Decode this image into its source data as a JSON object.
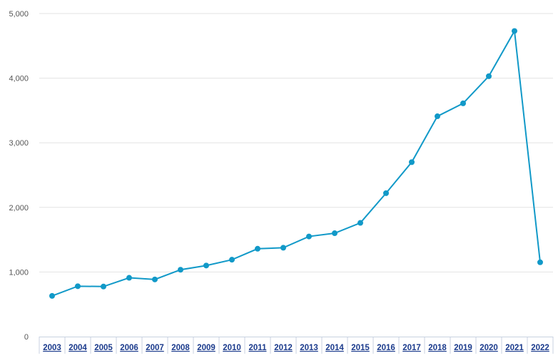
{
  "chart_data": {
    "type": "line",
    "title": "",
    "xlabel": "",
    "ylabel": "",
    "ylim": [
      0,
      5000
    ],
    "grid": true,
    "y_ticks": [
      {
        "value": 0,
        "label": "0"
      },
      {
        "value": 1000,
        "label": "1,000"
      },
      {
        "value": 2000,
        "label": "2,000"
      },
      {
        "value": 3000,
        "label": "3,000"
      },
      {
        "value": 4000,
        "label": "4,000"
      },
      {
        "value": 5000,
        "label": "5,000"
      }
    ],
    "categories": [
      "2003",
      "2004",
      "2005",
      "2006",
      "2007",
      "2008",
      "2009",
      "2010",
      "2011",
      "2012",
      "2013",
      "2014",
      "2015",
      "2016",
      "2017",
      "2018",
      "2019",
      "2020",
      "2021",
      "2022"
    ],
    "series": [
      {
        "name": "",
        "color": "#1199c8",
        "values": [
          630,
          780,
          775,
          910,
          885,
          1035,
          1100,
          1190,
          1360,
          1375,
          1550,
          1600,
          1760,
          2220,
          2700,
          3410,
          3610,
          4030,
          4730,
          1150
        ]
      }
    ]
  }
}
